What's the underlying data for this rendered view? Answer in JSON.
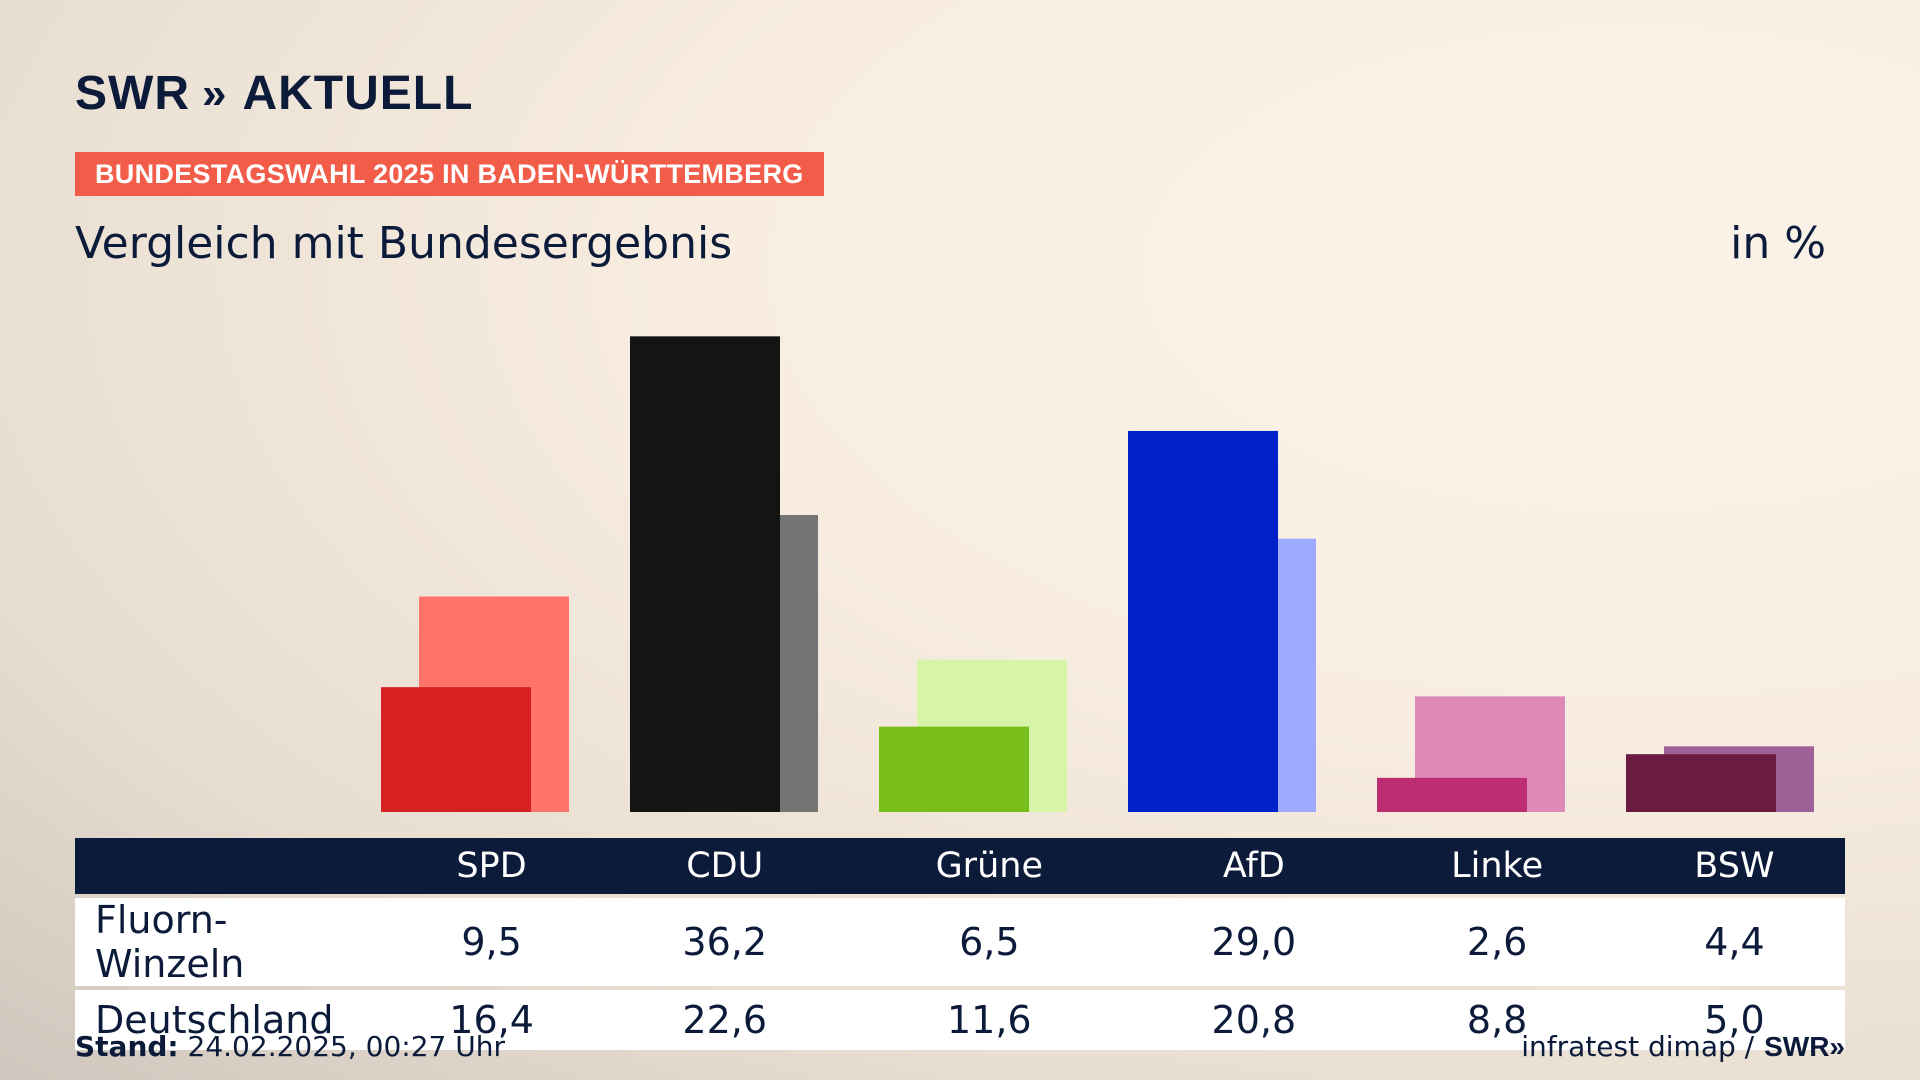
{
  "header": {
    "logo_swr": "SWR",
    "logo_chevron": "»",
    "logo_aktuell": "AKTUELL",
    "topic": "BUNDESTAGSWAHL 2025 IN BADEN-WÜRTTEMBERG",
    "subtitle": "Vergleich mit Bundesergebnis",
    "unit": "in %"
  },
  "chart_data": {
    "type": "bar",
    "categories": [
      "SPD",
      "CDU",
      "Grüne",
      "AfD",
      "Linke",
      "BSW"
    ],
    "series": [
      {
        "name": "Fluorn-Winzeln",
        "values": [
          9.5,
          36.2,
          6.5,
          29.0,
          2.6,
          4.4
        ]
      },
      {
        "name": "Deutschland",
        "values": [
          16.4,
          22.6,
          11.6,
          20.8,
          8.8,
          5.0
        ]
      }
    ],
    "colors_primary": [
      "#d72020",
      "#141414",
      "#78bf1b",
      "#0021c9",
      "#bd2d71",
      "#6a1b3f"
    ],
    "colors_secondary": [
      "#ff746a",
      "#747474",
      "#d7f5a9",
      "#9eaaff",
      "#df89b7",
      "#9d6197"
    ],
    "ylim": [
      0,
      40
    ]
  },
  "table": {
    "headers": [
      "SPD",
      "CDU",
      "Grüne",
      "AfD",
      "Linke",
      "BSW"
    ],
    "rows": [
      {
        "label": "Fluorn-Winzeln",
        "values": [
          "9,5",
          "36,2",
          "6,5",
          "29,0",
          "2,6",
          "4,4"
        ]
      },
      {
        "label": "Deutschland",
        "values": [
          "16,4",
          "22,6",
          "11,6",
          "20,8",
          "8,8",
          "5,0"
        ]
      }
    ]
  },
  "footer": {
    "stand_label": "Stand:",
    "stand_value": "24.02.2025, 00:27 Uhr",
    "source": "infratest dimap /",
    "brand": "SWR»"
  }
}
